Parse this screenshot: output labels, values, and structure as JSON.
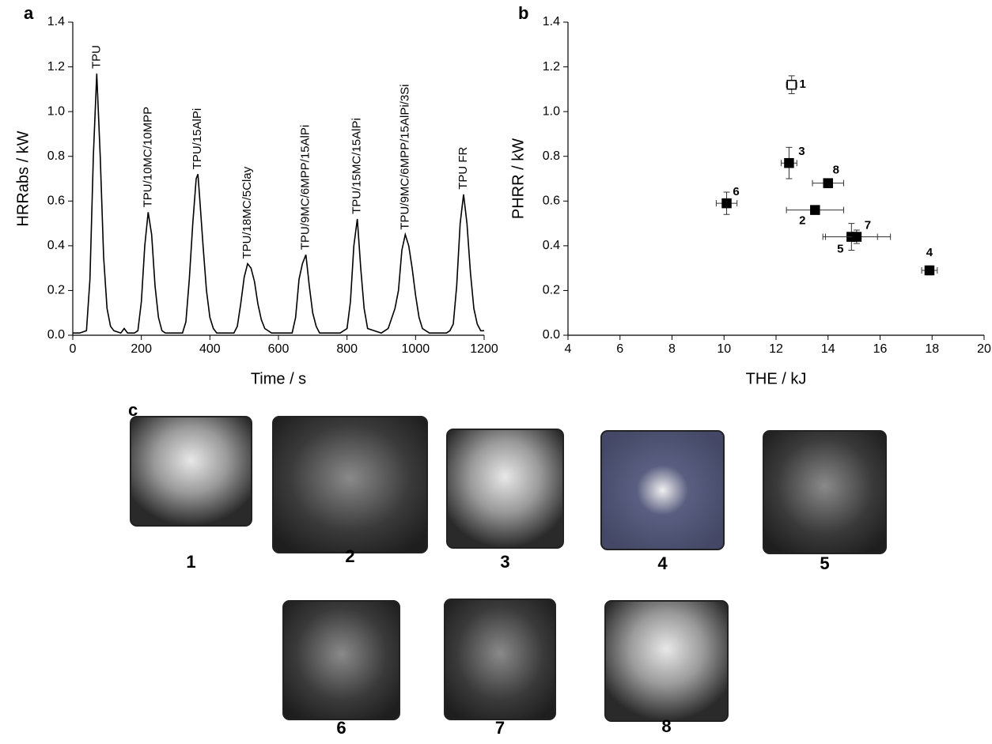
{
  "panel_labels": [
    "a",
    "b",
    "c"
  ],
  "chart_data": [
    {
      "type": "line",
      "xlabel": "Time / s",
      "ylabel": "HRRabs / kW",
      "color": "#000000",
      "x": [
        0,
        20,
        40,
        50,
        60,
        70,
        80,
        90,
        100,
        110,
        120,
        140,
        150,
        160,
        180,
        190,
        200,
        210,
        220,
        230,
        240,
        250,
        260,
        270,
        300,
        320,
        330,
        340,
        350,
        360,
        365,
        370,
        380,
        390,
        400,
        410,
        420,
        470,
        480,
        490,
        500,
        510,
        520,
        530,
        540,
        550,
        560,
        580,
        600,
        640,
        650,
        660,
        670,
        680,
        690,
        700,
        710,
        720,
        760,
        780,
        800,
        810,
        820,
        830,
        840,
        850,
        860,
        900,
        920,
        940,
        950,
        960,
        970,
        980,
        990,
        1000,
        1010,
        1020,
        1040,
        1090,
        1100,
        1110,
        1120,
        1130,
        1140,
        1150,
        1160,
        1170,
        1180,
        1190,
        1200
      ],
      "values": [
        0.01,
        0.01,
        0.02,
        0.25,
        0.8,
        1.17,
        0.8,
        0.35,
        0.12,
        0.04,
        0.02,
        0.01,
        0.03,
        0.01,
        0.01,
        0.02,
        0.15,
        0.4,
        0.55,
        0.45,
        0.22,
        0.08,
        0.02,
        0.01,
        0.01,
        0.01,
        0.06,
        0.25,
        0.5,
        0.7,
        0.72,
        0.62,
        0.4,
        0.2,
        0.08,
        0.03,
        0.01,
        0.01,
        0.04,
        0.14,
        0.26,
        0.32,
        0.3,
        0.24,
        0.14,
        0.07,
        0.03,
        0.01,
        0.01,
        0.01,
        0.08,
        0.25,
        0.32,
        0.36,
        0.22,
        0.1,
        0.04,
        0.01,
        0.01,
        0.01,
        0.03,
        0.15,
        0.4,
        0.52,
        0.3,
        0.12,
        0.03,
        0.01,
        0.03,
        0.12,
        0.2,
        0.38,
        0.45,
        0.4,
        0.3,
        0.18,
        0.08,
        0.03,
        0.01,
        0.01,
        0.02,
        0.05,
        0.22,
        0.5,
        0.63,
        0.5,
        0.28,
        0.12,
        0.05,
        0.02,
        0.02
      ],
      "xlim": [
        0,
        1200
      ],
      "xticks": [
        0,
        200,
        400,
        600,
        800,
        1000,
        1200
      ],
      "ylim": [
        0,
        1.4
      ],
      "yticks": [
        {
          "value": 0,
          "label": "0.0"
        },
        {
          "value": 0.2,
          "label": "0.2"
        },
        {
          "value": 0.4,
          "label": "0.4"
        },
        {
          "value": 0.6,
          "label": "0.6"
        },
        {
          "value": 0.8,
          "label": "0.8"
        },
        {
          "value": 1,
          "label": "1.0"
        },
        {
          "value": 1.2,
          "label": "1.2"
        },
        {
          "value": 1.4,
          "label": "1.4"
        }
      ],
      "annotations": [
        {
          "text": "TPU",
          "x": 70,
          "y": 1.17
        },
        {
          "text": "TPU/10MC/10MPP",
          "x": 220,
          "y": 0.55
        },
        {
          "text": "TPU/15AlPi",
          "x": 365,
          "y": 0.72
        },
        {
          "text": "TPU/18MC/5Clay",
          "x": 510,
          "y": 0.32
        },
        {
          "text": "TPU/9MC/6MPP/15AlPi",
          "x": 680,
          "y": 0.36
        },
        {
          "text": "TPU/15MC/15AlPi",
          "x": 830,
          "y": 0.52
        },
        {
          "text": "TPU/9MC/6MPP/15AlPi/3Si",
          "x": 970,
          "y": 0.45
        },
        {
          "text": "TPU FR",
          "x": 1140,
          "y": 0.63
        }
      ]
    },
    {
      "type": "scatter",
      "xlabel": "THE / kJ",
      "ylabel": "PHRR / kW",
      "color": "#000000",
      "xlim": [
        4,
        20
      ],
      "xticks": [
        4,
        6,
        8,
        10,
        12,
        14,
        16,
        18,
        20
      ],
      "ylim": [
        0,
        1.4
      ],
      "yticks": [
        {
          "value": 0,
          "label": "0.0"
        },
        {
          "value": 0.2,
          "label": "0.2"
        },
        {
          "value": 0.4,
          "label": "0.4"
        },
        {
          "value": 0.6,
          "label": "0.6"
        },
        {
          "value": 0.8,
          "label": "0.8"
        },
        {
          "value": 1,
          "label": "1.0"
        },
        {
          "value": 1.2,
          "label": "1.2"
        },
        {
          "value": 1.4,
          "label": "1.4"
        }
      ],
      "points": [
        {
          "label": "1",
          "x": 12.6,
          "y": 1.12,
          "xerr": 0.2,
          "yerr": 0.04,
          "filled": false
        },
        {
          "label": "2",
          "x": 13.5,
          "y": 0.56,
          "xerr": 1.1,
          "yerr": 0.01,
          "filled": true
        },
        {
          "label": "3",
          "x": 12.5,
          "y": 0.77,
          "xerr": 0.3,
          "yerr": 0.07,
          "filled": true
        },
        {
          "label": "4",
          "x": 17.9,
          "y": 0.29,
          "xerr": 0.3,
          "yerr": 0.02,
          "filled": true
        },
        {
          "label": "5",
          "x": 14.9,
          "y": 0.44,
          "xerr": 1.0,
          "yerr": 0.06,
          "filled": true
        },
        {
          "label": "6",
          "x": 10.1,
          "y": 0.59,
          "xerr": 0.4,
          "yerr": 0.05,
          "filled": true
        },
        {
          "label": "7",
          "x": 15.1,
          "y": 0.44,
          "xerr": 1.3,
          "yerr": 0.03,
          "filled": true
        },
        {
          "label": "8",
          "x": 14.0,
          "y": 0.68,
          "xerr": 0.6,
          "yerr": 0.02,
          "filled": true
        }
      ]
    }
  ],
  "photos": {
    "labels": [
      "1",
      "2",
      "3",
      "4",
      "5",
      "6",
      "7",
      "8"
    ]
  }
}
